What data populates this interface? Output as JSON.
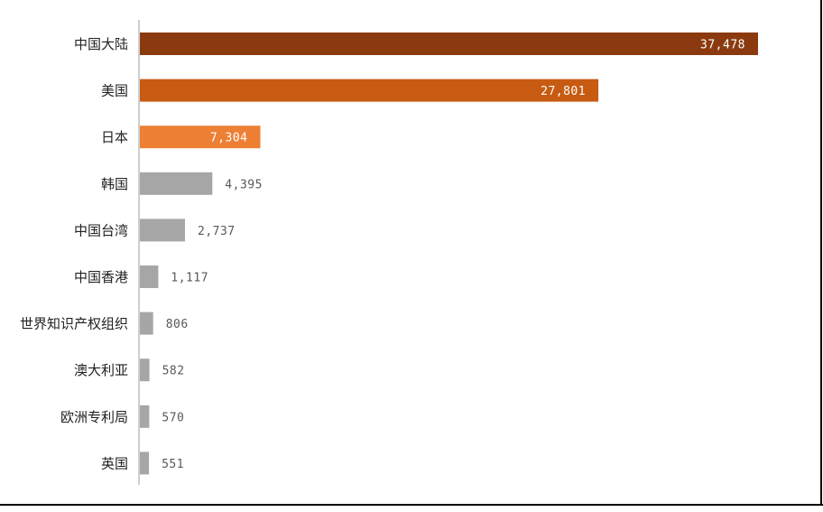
{
  "chart_data": {
    "type": "bar",
    "orientation": "horizontal",
    "title": "",
    "xlabel": "",
    "ylabel": "",
    "categories": [
      "中国大陆",
      "美国",
      "日本",
      "韩国",
      "中国台湾",
      "中国香港",
      "世界知识产权组织",
      "澳大利亚",
      "欧洲专利局",
      "英国"
    ],
    "values": [
      37478,
      27801,
      7304,
      4395,
      2737,
      1117,
      806,
      582,
      570,
      551
    ],
    "value_labels": [
      "37,478",
      "27,801",
      "7,304",
      "4,395",
      "2,737",
      "1,117",
      "806",
      "582",
      "570",
      "551"
    ],
    "bar_colors": [
      "#8B3A0F",
      "#C75B12",
      "#ED8034",
      "#A6A6A6",
      "#A6A6A6",
      "#A6A6A6",
      "#A6A6A6",
      "#A6A6A6",
      "#A6A6A6",
      "#A6A6A6"
    ],
    "label_inside": [
      true,
      true,
      true,
      false,
      false,
      false,
      false,
      false,
      false,
      false
    ],
    "xlim": [
      0,
      37478
    ],
    "grid": false,
    "legend": false
  },
  "colors": {
    "axis_line": "#BFBFBF",
    "label_inside": "#FFFFFF",
    "label_outside": "#595959",
    "category_text": "#222222"
  }
}
